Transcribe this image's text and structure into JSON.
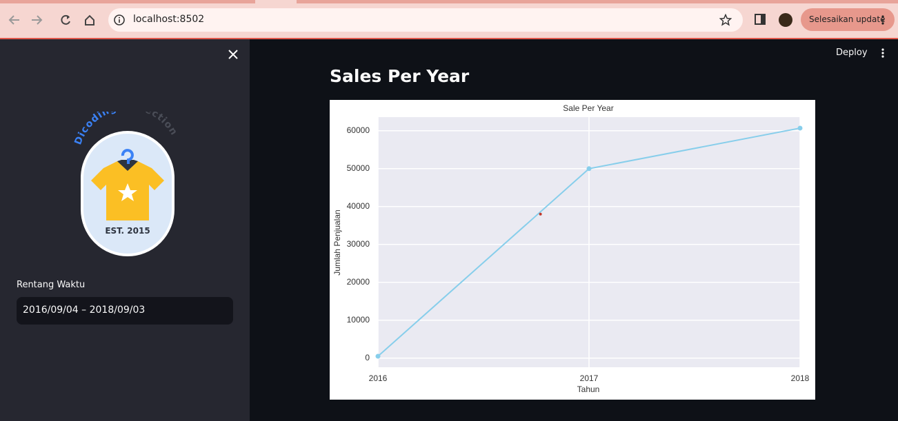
{
  "browser": {
    "url": "localhost:8502",
    "update_button": "Selesaikan update"
  },
  "app": {
    "deploy": "Deploy",
    "sidebar": {
      "logo": {
        "arc_text_1": "Dicoding",
        "arc_text_2": "Collection",
        "badge": "EST. 2015"
      },
      "date_label": "Rentang Waktu",
      "date_range": "2016/09/04 – 2018/09/03"
    },
    "heading": "Sales Per Year"
  },
  "chart_data": {
    "type": "line",
    "title": "Sale Per Year",
    "xlabel": "Tahun",
    "ylabel": "Jumlah Penjualan",
    "x": [
      2016,
      2017,
      2018
    ],
    "values": [
      500,
      50000,
      60700
    ],
    "color": "#87ceeb",
    "marker": {
      "x": 2016.77,
      "y": 38000,
      "color": "#c0392b"
    },
    "xlim": [
      2016,
      2018
    ],
    "xticks": [
      2016,
      2017,
      2018
    ],
    "ylim": [
      -2400,
      63600
    ],
    "yticks": [
      0,
      10000,
      20000,
      30000,
      40000,
      50000,
      60000
    ],
    "grid": true
  }
}
